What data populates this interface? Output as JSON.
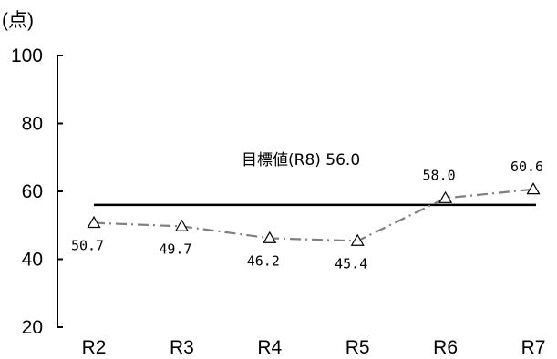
{
  "chart_data": {
    "type": "line",
    "unit_label": "(点)",
    "categories": [
      "R2",
      "R3",
      "R4",
      "R5",
      "R6",
      "R7"
    ],
    "series": [
      {
        "values": [
          50.7,
          49.7,
          46.2,
          45.4,
          58.0,
          60.6
        ],
        "labels": [
          "50.7",
          "49.7",
          "46.2",
          "45.4",
          "58.0",
          "60.6"
        ],
        "color": "#808080",
        "marker": "triangle-open",
        "line_style": "dash-dot"
      }
    ],
    "target": {
      "label": "目標値(R8) 56.0",
      "value": 56.0,
      "color": "#000000"
    },
    "ylim": [
      20,
      100
    ],
    "yticks": [
      20,
      40,
      60,
      80,
      100
    ],
    "ytick_labels": [
      "20",
      "40",
      "60",
      "80",
      "100"
    ],
    "grid": false,
    "legend": "none"
  }
}
